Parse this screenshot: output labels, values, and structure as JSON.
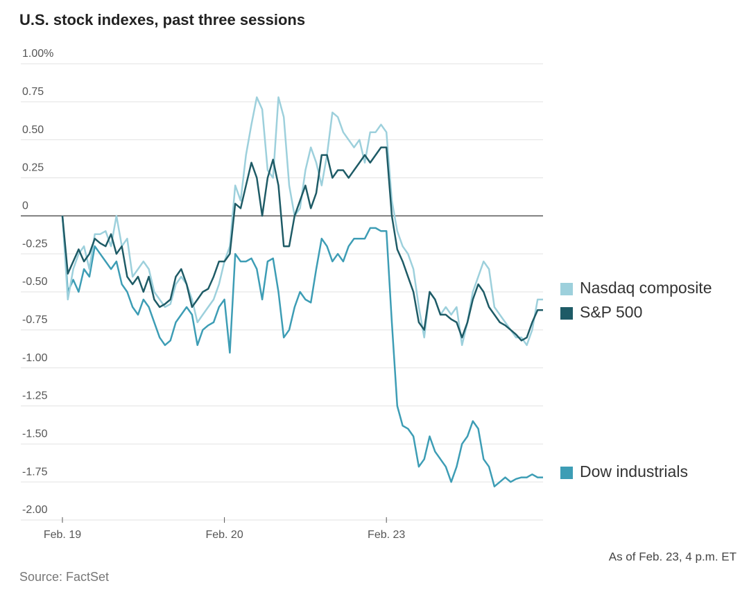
{
  "chart_data": {
    "type": "line",
    "title": "U.S. stock indexes, past three sessions",
    "source": "Source: FactSet",
    "note": "As of Feb. 23, 4 p.m. ET",
    "categories": [
      "Feb. 19",
      null,
      null,
      null,
      null,
      null,
      null,
      null,
      null,
      null,
      null,
      null,
      null,
      null,
      null,
      null,
      null,
      null,
      null,
      null,
      null,
      null,
      null,
      null,
      null,
      null,
      null,
      null,
      null,
      null,
      "Feb. 20",
      null,
      null,
      null,
      null,
      null,
      null,
      null,
      null,
      null,
      null,
      null,
      null,
      null,
      null,
      null,
      null,
      null,
      null,
      null,
      null,
      null,
      null,
      null,
      null,
      null,
      null,
      null,
      null,
      null,
      "Feb. 23",
      null,
      null,
      null,
      null,
      null,
      null,
      null,
      null,
      null,
      null,
      null,
      null,
      null,
      null,
      null,
      null,
      null,
      null,
      null,
      null,
      null,
      null,
      null,
      null,
      null,
      null,
      null,
      null,
      null
    ],
    "series": [
      {
        "name": "Nasdaq composite",
        "color": "#9dd0dc",
        "values": [
          0.0,
          -0.55,
          -0.35,
          -0.25,
          -0.2,
          -0.35,
          -0.12,
          -0.12,
          -0.1,
          -0.2,
          0.0,
          -0.2,
          -0.15,
          -0.4,
          -0.35,
          -0.3,
          -0.35,
          -0.5,
          -0.55,
          -0.6,
          -0.58,
          -0.45,
          -0.4,
          -0.45,
          -0.55,
          -0.7,
          -0.65,
          -0.6,
          -0.55,
          -0.45,
          -0.3,
          -0.2,
          0.2,
          0.1,
          0.4,
          0.6,
          0.78,
          0.7,
          0.3,
          0.25,
          0.78,
          0.65,
          0.2,
          0.0,
          0.05,
          0.3,
          0.45,
          0.35,
          0.2,
          0.4,
          0.68,
          0.65,
          0.55,
          0.5,
          0.45,
          0.5,
          0.35,
          0.55,
          0.55,
          0.6,
          0.55,
          0.1,
          -0.1,
          -0.2,
          -0.25,
          -0.35,
          -0.6,
          -0.8,
          -0.5,
          -0.55,
          -0.65,
          -0.6,
          -0.65,
          -0.6,
          -0.85,
          -0.7,
          -0.5,
          -0.4,
          -0.3,
          -0.35,
          -0.6,
          -0.65,
          -0.7,
          -0.75,
          -0.8,
          -0.8,
          -0.85,
          -0.75,
          -0.55,
          -0.55
        ]
      },
      {
        "name": "S&P 500",
        "color": "#1e5b66",
        "values": [
          0.0,
          -0.38,
          -0.3,
          -0.22,
          -0.3,
          -0.25,
          -0.15,
          -0.18,
          -0.2,
          -0.12,
          -0.25,
          -0.2,
          -0.4,
          -0.45,
          -0.4,
          -0.5,
          -0.4,
          -0.55,
          -0.6,
          -0.58,
          -0.55,
          -0.4,
          -0.35,
          -0.45,
          -0.6,
          -0.55,
          -0.5,
          -0.48,
          -0.4,
          -0.3,
          -0.3,
          -0.25,
          0.08,
          0.05,
          0.2,
          0.35,
          0.25,
          0.0,
          0.25,
          0.37,
          0.2,
          -0.2,
          -0.2,
          0.0,
          0.1,
          0.2,
          0.05,
          0.15,
          0.4,
          0.4,
          0.25,
          0.3,
          0.3,
          0.25,
          0.3,
          0.35,
          0.4,
          0.35,
          0.4,
          0.45,
          0.45,
          0.0,
          -0.22,
          -0.3,
          -0.4,
          -0.5,
          -0.7,
          -0.75,
          -0.5,
          -0.55,
          -0.65,
          -0.65,
          -0.68,
          -0.7,
          -0.8,
          -0.7,
          -0.55,
          -0.45,
          -0.5,
          -0.6,
          -0.65,
          -0.7,
          -0.72,
          -0.75,
          -0.78,
          -0.82,
          -0.8,
          -0.7,
          -0.62,
          -0.62
        ]
      },
      {
        "name": "Dow industrials",
        "color": "#3d9db5",
        "values": [
          0.0,
          -0.5,
          -0.42,
          -0.5,
          -0.35,
          -0.4,
          -0.2,
          -0.25,
          -0.3,
          -0.35,
          -0.3,
          -0.45,
          -0.5,
          -0.6,
          -0.65,
          -0.55,
          -0.6,
          -0.7,
          -0.8,
          -0.85,
          -0.82,
          -0.7,
          -0.65,
          -0.6,
          -0.65,
          -0.85,
          -0.75,
          -0.72,
          -0.7,
          -0.6,
          -0.55,
          -0.9,
          -0.25,
          -0.3,
          -0.3,
          -0.28,
          -0.35,
          -0.55,
          -0.3,
          -0.28,
          -0.5,
          -0.8,
          -0.75,
          -0.6,
          -0.5,
          -0.55,
          -0.57,
          -0.35,
          -0.15,
          -0.2,
          -0.3,
          -0.25,
          -0.3,
          -0.2,
          -0.15,
          -0.15,
          -0.15,
          -0.08,
          -0.08,
          -0.1,
          -0.1,
          -0.7,
          -1.25,
          -1.38,
          -1.4,
          -1.45,
          -1.65,
          -1.6,
          -1.45,
          -1.55,
          -1.6,
          -1.65,
          -1.75,
          -1.65,
          -1.5,
          -1.45,
          -1.35,
          -1.4,
          -1.6,
          -1.65,
          -1.78,
          -1.75,
          -1.72,
          -1.75,
          -1.73,
          -1.72,
          -1.72,
          -1.7,
          -1.72,
          -1.72
        ]
      }
    ],
    "ylim": [
      -2,
      1
    ],
    "yticks": [
      {
        "value": 1,
        "label": "1.00%"
      },
      0.75,
      {
        "value": 0.5,
        "label": "0.50"
      },
      0.25,
      0,
      -0.25,
      {
        "value": -0.5,
        "label": "-0.50"
      },
      -0.75,
      {
        "value": -1,
        "label": "-1.00"
      },
      -1.25,
      {
        "value": -1.5,
        "label": "-1.50"
      },
      -1.75,
      {
        "value": -2,
        "label": "-2.00"
      }
    ],
    "grid": true
  }
}
